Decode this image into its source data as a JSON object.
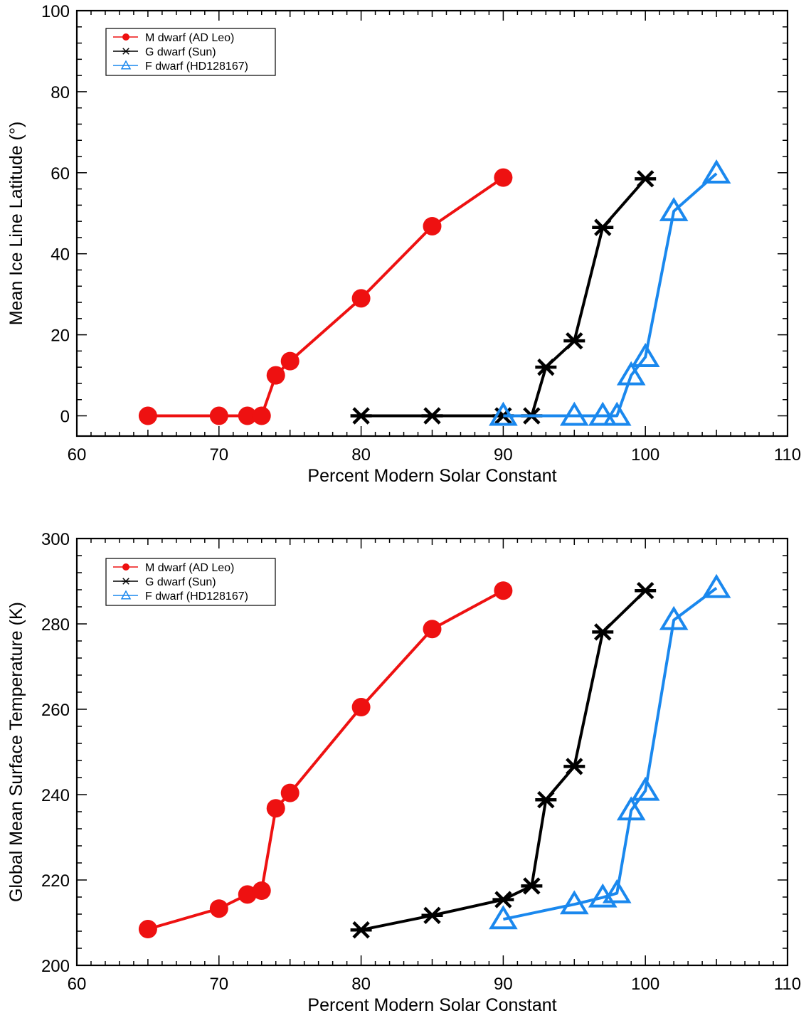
{
  "chart_data": [
    {
      "type": "line",
      "xlabel": "Percent Modern Solar Constant",
      "ylabel": "Mean Ice Line Latitude (°)",
      "xlim": [
        60,
        110
      ],
      "ylim": [
        -5,
        100
      ],
      "xticks": [
        60,
        70,
        80,
        90,
        100,
        110
      ],
      "yticks": [
        0,
        20,
        40,
        60,
        80,
        100
      ],
      "grid": false,
      "legend_position": "top-left",
      "series": [
        {
          "name": "M dwarf (AD Leo)",
          "color": "#ee1111",
          "marker": "circle",
          "x": [
            65,
            70,
            72,
            73,
            74,
            75,
            80,
            85,
            90
          ],
          "y": [
            0,
            0,
            0,
            0,
            10,
            13.5,
            29,
            46.8,
            58.8
          ]
        },
        {
          "name": "G dwarf (Sun)",
          "color": "#000000",
          "marker": "asterisk",
          "x": [
            80,
            85,
            90,
            92,
            93,
            95,
            97,
            100
          ],
          "y": [
            0,
            0,
            0,
            0,
            12,
            18.5,
            46.5,
            58.5
          ]
        },
        {
          "name": "F dwarf (HD128167)",
          "color": "#1a88ee",
          "marker": "triangle",
          "x": [
            90,
            95,
            97,
            98,
            99,
            100,
            102,
            105
          ],
          "y": [
            0,
            0,
            0,
            0,
            10,
            14.5,
            50.5,
            59.8
          ]
        }
      ]
    },
    {
      "type": "line",
      "xlabel": "Percent Modern Solar Constant",
      "ylabel": "Global Mean Surface Temperature (K)",
      "xlim": [
        60,
        110
      ],
      "ylim": [
        200,
        300
      ],
      "xticks": [
        60,
        70,
        80,
        90,
        100,
        110
      ],
      "yticks": [
        200,
        220,
        240,
        260,
        280,
        300
      ],
      "grid": false,
      "legend_position": "top-left",
      "series": [
        {
          "name": "M dwarf (AD Leo)",
          "color": "#ee1111",
          "marker": "circle",
          "x": [
            65,
            70,
            72,
            73,
            74,
            75,
            80,
            85,
            90
          ],
          "y": [
            208.5,
            213.3,
            216.6,
            217.5,
            236.8,
            240.4,
            260.5,
            278.8,
            287.8
          ]
        },
        {
          "name": "G dwarf (Sun)",
          "color": "#000000",
          "marker": "asterisk",
          "x": [
            80,
            85,
            90,
            92,
            93,
            95,
            97,
            100
          ],
          "y": [
            208.3,
            211.7,
            215.4,
            218.6,
            238.8,
            246.6,
            278.1,
            287.8
          ]
        },
        {
          "name": "F dwarf (HD128167)",
          "color": "#1a88ee",
          "marker": "triangle",
          "x": [
            90,
            95,
            97,
            98,
            99,
            100,
            102,
            105
          ],
          "y": [
            210.8,
            214.3,
            215.9,
            216.9,
            236.3,
            240.9,
            280.9,
            288.4
          ]
        }
      ]
    }
  ]
}
